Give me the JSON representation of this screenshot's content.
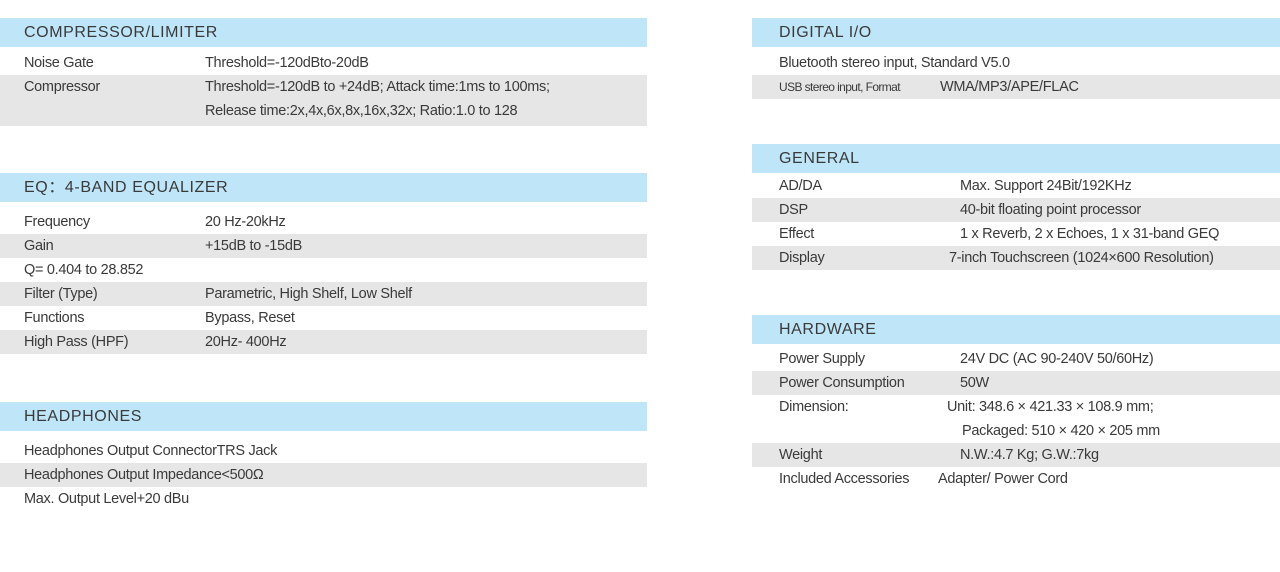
{
  "compressor": {
    "title": "COMPRESSOR/LIMITER",
    "rows": [
      {
        "label": "Noise Gate",
        "value": "Threshold=-120dBto-20dB"
      },
      {
        "label": "Compressor",
        "value": "Threshold=-120dB to +24dB; Attack time:1ms to 100ms;"
      },
      {
        "label": "",
        "value": "Release time:2x,4x,6x,8x,16x,32x; Ratio:1.0 to 128"
      }
    ]
  },
  "eq": {
    "title": "EQ：4-BAND EQUALIZER",
    "rows": [
      {
        "label": "Frequency",
        "value": "20 Hz-20kHz"
      },
      {
        "label": "Gain",
        "value": "+15dB to -15dB"
      },
      {
        "label": "Q= 0.404 to 28.852",
        "value": ""
      },
      {
        "label": "Filter (Type)",
        "value": "Parametric, High Shelf, Low Shelf"
      },
      {
        "label": "Functions",
        "value": "Bypass, Reset"
      },
      {
        "label": "High Pass (HPF)",
        "value": "20Hz- 400Hz"
      }
    ]
  },
  "headphones": {
    "title": "HEADPHONES",
    "rows": [
      {
        "label": "Headphones Output ConnectorTRS Jack"
      },
      {
        "label": "Headphones Output Impedance<500Ω"
      },
      {
        "label": "Max. Output Level+20 dBu"
      }
    ]
  },
  "digital_io": {
    "title": "DIGITAL I/O",
    "rows": [
      {
        "label": "Bluetooth stereo input, Standard V5.0"
      },
      {
        "label": "USB stereo input, Format",
        "value": "WMA/MP3/APE/FLAC"
      }
    ]
  },
  "general": {
    "title": "GENERAL",
    "rows": [
      {
        "label": "AD/DA",
        "value": "Max. Support 24Bit/192KHz"
      },
      {
        "label": "DSP",
        "value": "40-bit floating point processor"
      },
      {
        "label": "Effect",
        "value": "1 x Reverb, 2 x Echoes, 1 x 31-band GEQ"
      },
      {
        "label": "Display",
        "value": "7-inch Touchscreen (1024×600 Resolution)"
      }
    ]
  },
  "hardware": {
    "title": "HARDWARE",
    "rows": [
      {
        "label": "Power Supply",
        "value": "24V DC (AC 90-240V 50/60Hz)"
      },
      {
        "label": "Power Consumption",
        "value": "50W"
      },
      {
        "label": "Dimension:",
        "value": "Unit: 348.6 × 421.33 × 108.9 mm;"
      },
      {
        "label": "",
        "value": "Packaged: 510 × 420 × 205 mm"
      },
      {
        "label": "Weight",
        "value": "N.W.:4.7 Kg; G.W.:7kg"
      },
      {
        "label": "Included Accessories",
        "value": "Adapter/ Power Cord"
      }
    ]
  }
}
